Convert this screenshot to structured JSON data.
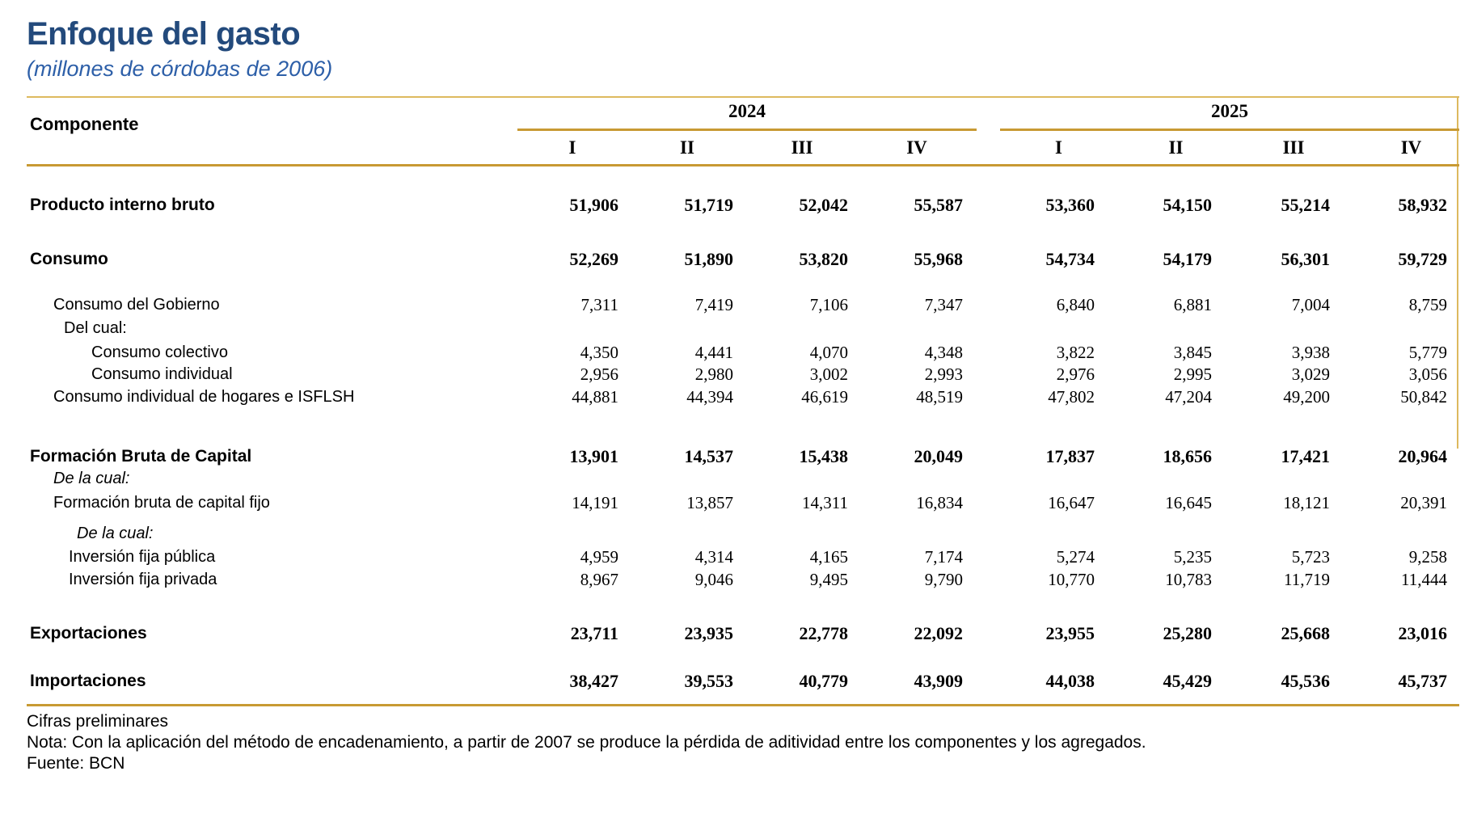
{
  "title": "Enfoque del gasto",
  "subtitle": "(millones de córdobas de 2006)",
  "colors": {
    "title_blue": "#234a7c",
    "subtitle_blue": "#2d5fa8",
    "gold": "#c89a33",
    "gold_light": "#ddb95e"
  },
  "table": {
    "component_header": "Componente",
    "year_groups": [
      {
        "year": "2024",
        "quarters": [
          "I",
          "II",
          "III",
          "IV"
        ]
      },
      {
        "year": "2025",
        "quarters": [
          "I",
          "II",
          "III",
          "IV"
        ]
      }
    ],
    "rows": [
      {
        "label": "Producto interno bruto",
        "style": "bold",
        "indent": 0,
        "values": [
          "51,906",
          "51,719",
          "52,042",
          "55,587",
          "53,360",
          "54,150",
          "55,214",
          "58,932"
        ]
      },
      {
        "label": "Consumo",
        "style": "bold",
        "indent": 0,
        "values": [
          "52,269",
          "51,890",
          "53,820",
          "55,968",
          "54,734",
          "54,179",
          "56,301",
          "59,729"
        ]
      },
      {
        "label": "Consumo del Gobierno",
        "style": "normal",
        "indent": 1,
        "values": [
          "7,311",
          "7,419",
          "7,106",
          "7,347",
          "6,840",
          "6,881",
          "7,004",
          "8,759"
        ]
      },
      {
        "label": "Del cual:",
        "style": "normal",
        "indent": 2,
        "values": []
      },
      {
        "label": "Consumo colectivo",
        "style": "normal",
        "indent": 3,
        "values": [
          "4,350",
          "4,441",
          "4,070",
          "4,348",
          "3,822",
          "3,845",
          "3,938",
          "5,779"
        ]
      },
      {
        "label": "Consumo individual",
        "style": "normal",
        "indent": 3,
        "values": [
          "2,956",
          "2,980",
          "3,002",
          "2,993",
          "2,976",
          "2,995",
          "3,029",
          "3,056"
        ]
      },
      {
        "label": "Consumo individual de hogares e ISFLSH",
        "style": "normal",
        "indent": 1,
        "values": [
          "44,881",
          "44,394",
          "46,619",
          "48,519",
          "47,802",
          "47,204",
          "49,200",
          "50,842"
        ]
      },
      {
        "label": "Formación Bruta de Capital",
        "style": "bold",
        "indent": 0,
        "values": [
          "13,901",
          "14,537",
          "15,438",
          "20,049",
          "17,837",
          "18,656",
          "17,421",
          "20,964"
        ]
      },
      {
        "label": "De la cual:",
        "style": "italic",
        "indent": 1,
        "values": []
      },
      {
        "label": "Formación bruta de capital fijo",
        "style": "normal",
        "indent": 1,
        "values": [
          "14,191",
          "13,857",
          "14,311",
          "16,834",
          "16,647",
          "16,645",
          "18,121",
          "20,391"
        ]
      },
      {
        "label": "De la cual:",
        "style": "italic",
        "indent": 4,
        "values": []
      },
      {
        "label": "Inversión fija pública",
        "style": "normal",
        "indent": 5,
        "values": [
          "4,959",
          "4,314",
          "4,165",
          "7,174",
          "5,274",
          "5,235",
          "5,723",
          "9,258"
        ]
      },
      {
        "label": "Inversión fija privada",
        "style": "normal",
        "indent": 5,
        "values": [
          "8,967",
          "9,046",
          "9,495",
          "9,790",
          "10,770",
          "10,783",
          "11,719",
          "11,444"
        ]
      },
      {
        "label": "Exportaciones",
        "style": "bold",
        "indent": 0,
        "values": [
          "23,711",
          "23,935",
          "22,778",
          "22,092",
          "23,955",
          "25,280",
          "25,668",
          "23,016"
        ]
      },
      {
        "label": "Importaciones",
        "style": "bold",
        "indent": 0,
        "values": [
          "38,427",
          "39,553",
          "40,779",
          "43,909",
          "44,038",
          "45,429",
          "45,536",
          "45,737"
        ]
      }
    ]
  },
  "footer": {
    "line1": "Cifras preliminares",
    "line2": "Nota: Con la aplicación del método de encadenamiento, a partir de 2007 se produce la pérdida de aditividad entre los componentes y los agregados.",
    "line3": "Fuente: BCN"
  }
}
